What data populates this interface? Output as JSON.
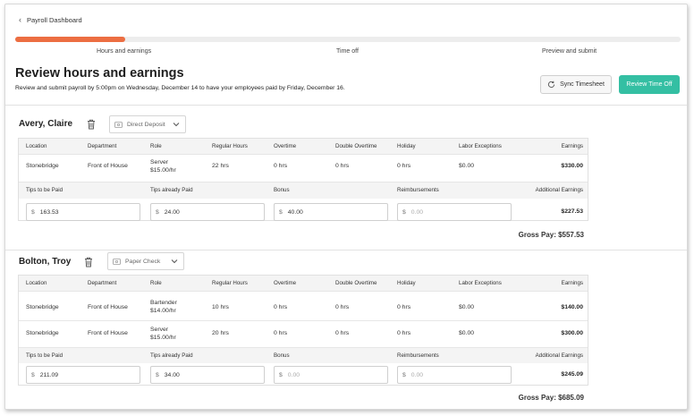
{
  "nav": {
    "back_label": "Payroll Dashboard"
  },
  "progress": {
    "fraction": 0.165,
    "steps": [
      "Hours and earnings",
      "Time off",
      "Preview and submit"
    ]
  },
  "header": {
    "title": "Review hours and earnings",
    "subtitle": "Review and submit payroll by 5:00pm on Wednesday, December 14 to have your employees paid by Friday, December 16.",
    "sync_label": "Sync Timesheet",
    "review_label": "Review Time Off"
  },
  "colors": {
    "accent_orange": "#ec6e42",
    "accent_teal": "#34bfa3"
  },
  "columns": {
    "hours": [
      "Location",
      "Department",
      "Role",
      "Regular Hours",
      "Overtime",
      "Double Overtime",
      "Holiday",
      "Labor Exceptions",
      "Earnings"
    ],
    "extras": [
      "Tips to be Paid",
      "Tips already Paid",
      "Bonus",
      "Reimbursements",
      "Additional Earnings"
    ]
  },
  "employees": [
    {
      "name": "Avery, Claire",
      "payment_method": "Direct Deposit",
      "rows": [
        {
          "location": "Stonebridge",
          "department": "Front of House",
          "role": "Server",
          "rate": "$15.00/hr",
          "regular_hours": "22 hrs",
          "overtime": "0 hrs",
          "double_overtime": "0 hrs",
          "holiday": "0 hrs",
          "labor_exceptions": "$0.00",
          "earnings": "$330.00"
        }
      ],
      "extras": {
        "currency": "$",
        "tips_to_be_paid": "163.53",
        "tips_already_paid": "24.00",
        "bonus": "40.00",
        "reimbursements_placeholder": "0.00",
        "additional_earnings": "$227.53"
      },
      "gross_pay": "Gross Pay: $557.53"
    },
    {
      "name": "Bolton, Troy",
      "payment_method": "Paper Check",
      "rows": [
        {
          "location": "Stonebridge",
          "department": "Front of House",
          "role": "Bartender",
          "rate": "$14.00/hr",
          "regular_hours": "10 hrs",
          "overtime": "0 hrs",
          "double_overtime": "0 hrs",
          "holiday": "0 hrs",
          "labor_exceptions": "$0.00",
          "earnings": "$140.00"
        },
        {
          "location": "Stonebridge",
          "department": "Front of House",
          "role": "Server",
          "rate": "$15.00/hr",
          "regular_hours": "20 hrs",
          "overtime": "0 hrs",
          "double_overtime": "0 hrs",
          "holiday": "0 hrs",
          "labor_exceptions": "$0.00",
          "earnings": "$300.00"
        }
      ],
      "extras": {
        "currency": "$",
        "tips_to_be_paid": "211.09",
        "tips_already_paid": "34.00",
        "bonus_placeholder": "0.00",
        "reimbursements_placeholder": "0.00",
        "additional_earnings": "$245.09"
      },
      "gross_pay": "Gross Pay: $685.09"
    }
  ]
}
